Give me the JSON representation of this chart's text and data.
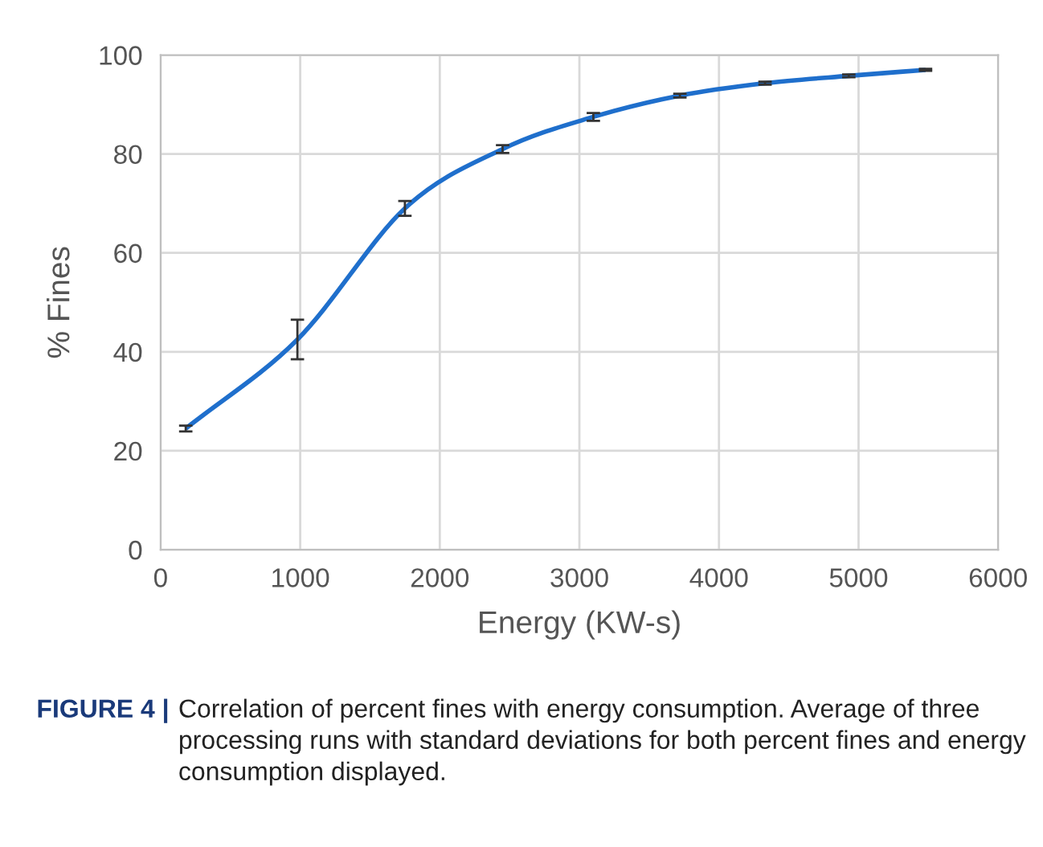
{
  "chart_data": {
    "type": "line",
    "xlabel": "Energy (KW-s)",
    "ylabel": "% Fines",
    "x": [
      180,
      980,
      1750,
      2450,
      3100,
      3720,
      4330,
      4930,
      5480
    ],
    "series": [
      {
        "color": "#1f6fcc",
        "values": [
          24.5,
          42.5,
          69,
          81,
          87.5,
          91.8,
          94.3,
          95.8,
          97
        ],
        "errors": [
          0.6,
          4,
          1.5,
          0.8,
          0.8,
          0.4,
          0.3,
          0.3,
          0.2
        ]
      }
    ],
    "xlim": [
      0,
      6000
    ],
    "xticks": [
      0,
      1000,
      2000,
      3000,
      4000,
      5000,
      6000
    ],
    "ylim": [
      0,
      100
    ],
    "yticks": [
      0,
      20,
      40,
      60,
      80,
      100
    ],
    "grid": true,
    "marker": "none",
    "line_style": "solid",
    "legend": false,
    "annotations": [
      "FIGURE 4 |",
      "Correlation of percent fines with energy consumption. Average of three processing runs with standard deviations for both percent fines and energy consumption displayed."
    ]
  }
}
